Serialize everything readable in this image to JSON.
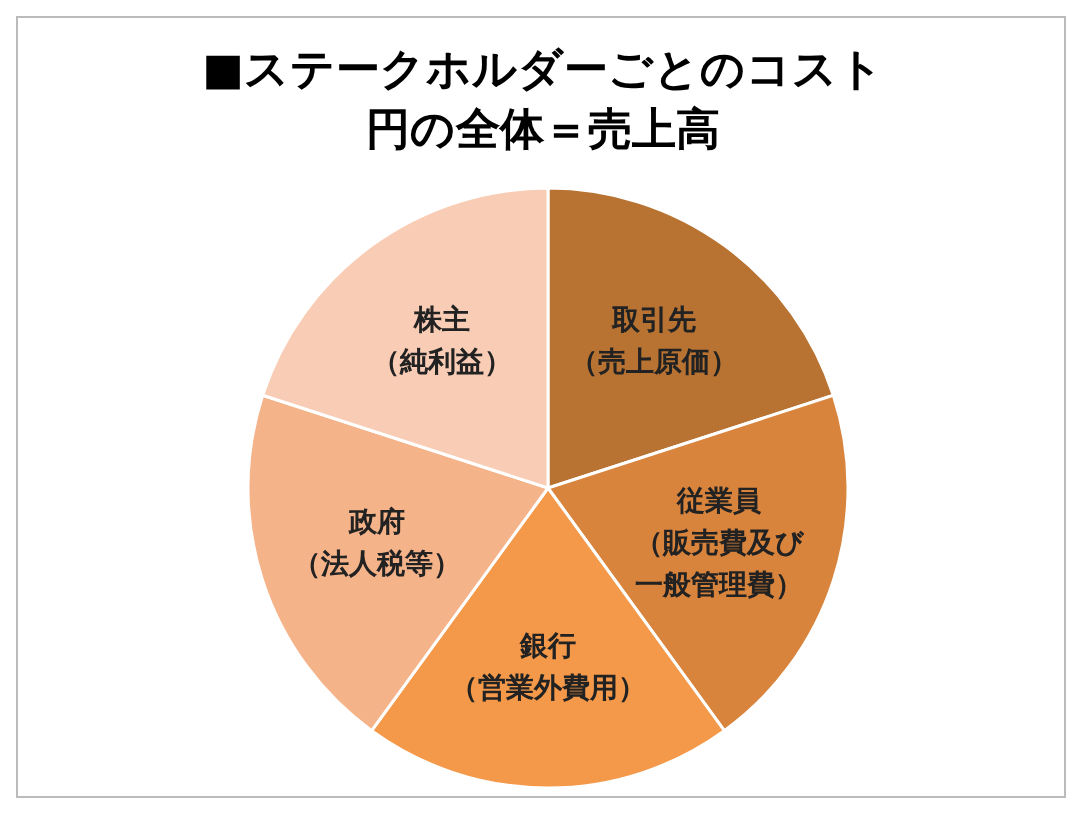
{
  "chart_data": {
    "type": "pie",
    "title": "■ステークホルダーごとのコスト",
    "subtitle": "円の全体＝売上高",
    "categories": [
      "取引先（売上原価）",
      "従業員（販売費及び一般管理費）",
      "銀行（営業外費用）",
      "政府（法人税等）",
      "株主（純利益）"
    ],
    "values": [
      20,
      20,
      20,
      20,
      20
    ],
    "colors": [
      "#b87333",
      "#d9843d",
      "#f4994a",
      "#f5b38a",
      "#f9cdb5"
    ],
    "legend": false
  }
}
